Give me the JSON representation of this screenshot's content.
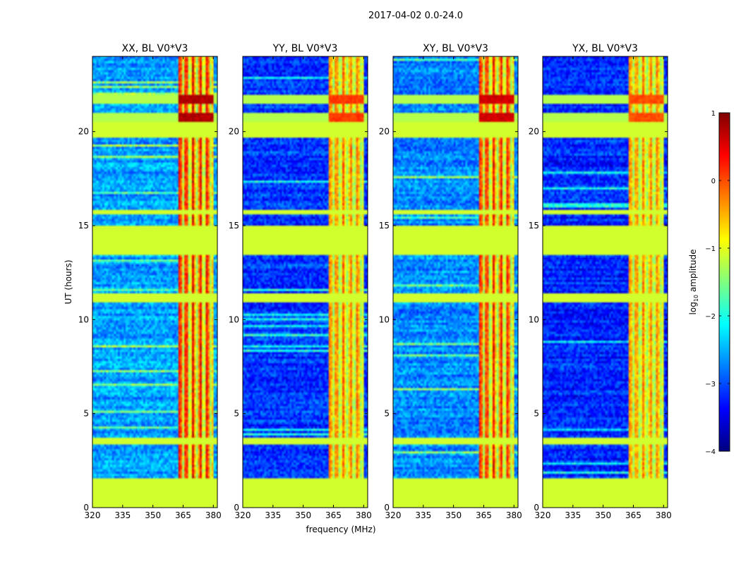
{
  "chart_data": {
    "type": "heatmap",
    "suptitle": "2017-04-02 0.0-24.0",
    "xlabel": "frequency (MHz)",
    "ylabel": "UT (hours)",
    "xlim": [
      320,
      382
    ],
    "ylim": [
      0,
      24
    ],
    "x_ticks": [
      320,
      335,
      350,
      365,
      380
    ],
    "y_ticks": [
      0,
      5,
      10,
      15,
      20
    ],
    "panels": [
      {
        "title": "XX, BL V0*V3",
        "seed": 11,
        "rfi_level": 0.95,
        "bg_level": 0.28
      },
      {
        "title": "YY, BL V0*V3",
        "seed": 23,
        "rfi_level": 0.82,
        "bg_level": 0.18
      },
      {
        "title": "XY, BL V0*V3",
        "seed": 37,
        "rfi_level": 0.92,
        "bg_level": 0.26
      },
      {
        "title": "YX, BL V0*V3",
        "seed": 51,
        "rfi_level": 0.8,
        "bg_level": 0.16
      }
    ],
    "rfi_band_mhz": [
      362.5,
      380
    ],
    "rfi_stripe_centers_mhz": [
      363.5,
      366.5,
      370,
      373.5,
      377,
      380.5
    ],
    "flagged_time_ranges_hours": [
      [
        0,
        1.55
      ],
      [
        13.5,
        15.0
      ],
      [
        3.35,
        3.75
      ],
      [
        10.9,
        11.4
      ],
      [
        15.55,
        15.8
      ],
      [
        19.7,
        20.5
      ]
    ],
    "hot_time_ranges_hours": [
      [
        20.0,
        21.0
      ],
      [
        21.5,
        22.0
      ]
    ],
    "colorbar": {
      "label": "log10 amplitude",
      "label_main": "log",
      "label_sub": "10",
      "label_rest": " amplitude",
      "min": -4,
      "max": 1,
      "ticks": [
        -4,
        -3,
        -2,
        -1,
        0,
        1
      ],
      "tick_labels": [
        "−4",
        "−3",
        "−2",
        "−1",
        "0",
        "1"
      ]
    }
  }
}
